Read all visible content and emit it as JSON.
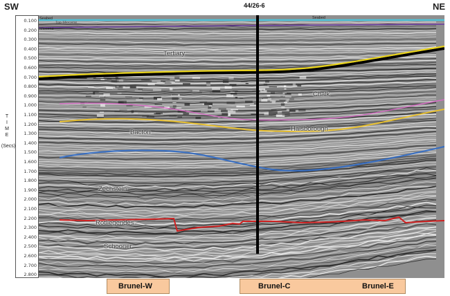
{
  "header": {
    "left": "SW",
    "right": "NE",
    "well": "44/26-6"
  },
  "axis": {
    "title_letters": [
      "T",
      "I",
      "M",
      "E"
    ],
    "units": "(Secs)",
    "ticks": [
      "0.100",
      "0.200",
      "0.300",
      "0.400",
      "0.500",
      "0.600",
      "0.700",
      "0.800",
      "0.900",
      "1.000",
      "1.100",
      "1.200",
      "1.300",
      "1.400",
      "1.500",
      "1.600",
      "1.700",
      "1.800",
      "1.900",
      "2.000",
      "2.100",
      "2.200",
      "2.300",
      "2.400",
      "2.500",
      "2.600",
      "2.700",
      "2.800"
    ]
  },
  "horizons": {
    "seabed": "Seabed",
    "seabed_right": "Seabed",
    "top_miocene": "Top Miocene",
    "miocene": "Miocene",
    "tertiary": "Tertiary",
    "chalk": "Chalk",
    "haisborough": "Haisborough",
    "bacton": "Bacton",
    "zechstein": "Zechstein",
    "rotliegendes": "Rotliegendes",
    "schooner": "Schooner"
  },
  "fields": {
    "brunel_w": "Brunel-W",
    "brunel_c": "Brunel-C",
    "brunel_e": "Brunel-E"
  },
  "colors": {
    "seabed": "#4fc3d9",
    "miocene": "#6a3fa0",
    "base_tertiary": "#e8d21a",
    "chalk_top": "#d070c0",
    "bacton_top": "#e8c030",
    "zechstein_top": "#3a6fc0",
    "rotliegendes": "#d02020",
    "field_box": "#f9c99e"
  }
}
